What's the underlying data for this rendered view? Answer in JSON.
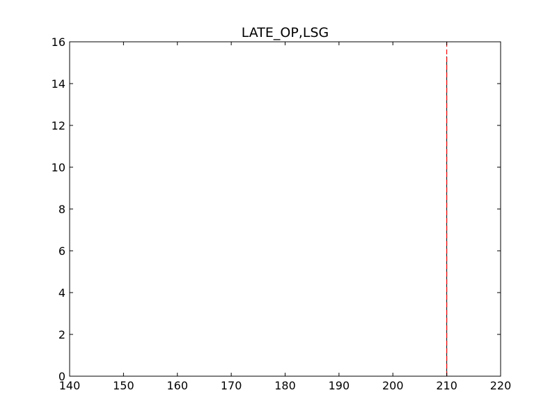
{
  "chart_data": {
    "type": "bar",
    "title": "LATE_OP,LSG",
    "xlabel": "",
    "ylabel": "",
    "xlim": [
      140,
      220
    ],
    "ylim": [
      0,
      16
    ],
    "x_ticks": [
      140,
      150,
      160,
      170,
      180,
      190,
      200,
      210,
      220
    ],
    "y_ticks": [
      0,
      2,
      4,
      6,
      8,
      10,
      12,
      14,
      16
    ],
    "grid": false,
    "bars": [
      {
        "x": 210,
        "value": 15.3
      }
    ],
    "reference_lines": [
      {
        "x": 210,
        "style": "dashed",
        "color": "#ff0000"
      }
    ],
    "colors": {
      "bar": "#000000",
      "reference_line": "#ff0000"
    }
  }
}
